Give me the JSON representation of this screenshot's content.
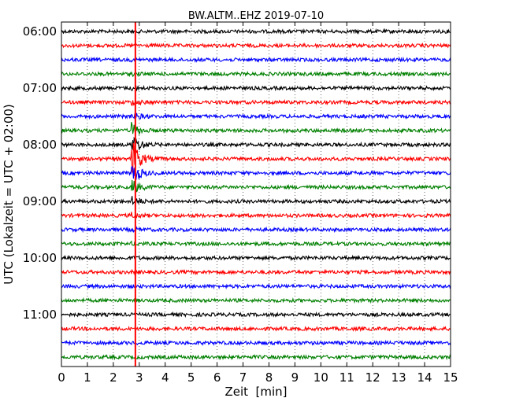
{
  "chart_data": {
    "type": "line",
    "title": "BW.ALTM..EHZ 2019-07-10",
    "xlabel": "Zeit  [min]",
    "ylabel": "UTC (Lokalzeit = UTC + 02:00)",
    "xlim": [
      0,
      15
    ],
    "x_ticks": [
      "0",
      "1",
      "2",
      "3",
      "4",
      "5",
      "6",
      "7",
      "8",
      "9",
      "10",
      "11",
      "12",
      "13",
      "14",
      "15"
    ],
    "y_tick_labels": [
      "06:00",
      "07:00",
      "08:00",
      "09:00",
      "10:00",
      "11:00"
    ],
    "grid": "vertical dotted at each minute",
    "trace_interval_min": 15,
    "trace_colors": [
      "#000000",
      "#ff0000",
      "#0000ff",
      "#008000"
    ],
    "traces": [
      "06:00",
      "06:15",
      "06:30",
      "06:45",
      "07:00",
      "07:15",
      "07:30",
      "07:45",
      "08:00",
      "08:15",
      "08:30",
      "08:45",
      "09:00",
      "09:15",
      "09:30",
      "09:45",
      "10:00",
      "10:15",
      "10:30",
      "10:45",
      "11:00",
      "11:15",
      "11:30",
      "11:45"
    ],
    "event_marker": {
      "x_min": 2.85,
      "color": "#ff0000"
    },
    "event_signal": {
      "onset_min": 2.7,
      "peak_trace": "08:15",
      "peak_amplitude_traces": 1.0
    }
  }
}
